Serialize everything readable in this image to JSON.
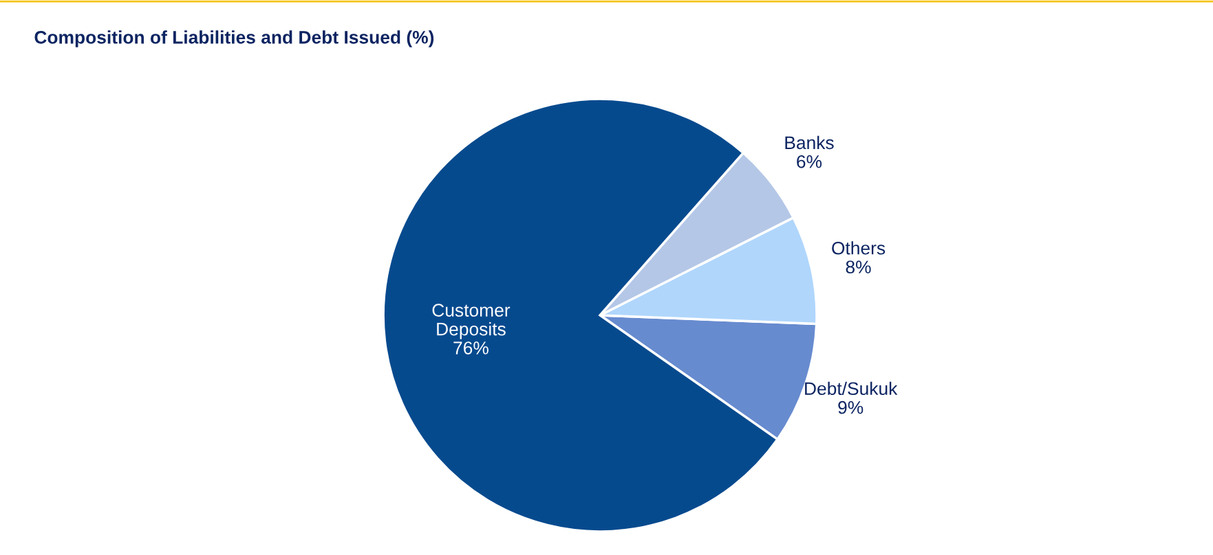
{
  "chart_data": {
    "type": "pie",
    "title": "Composition of Liabilities and Debt Issued (%)",
    "categories": [
      "Debt/Sukuk",
      "Others",
      "Banks",
      "Customer\nDeposits"
    ],
    "values": [
      9,
      8,
      6,
      76
    ],
    "value_labels": [
      "9%",
      "8%",
      "6%",
      "76%"
    ],
    "colors": [
      "#678bcf",
      "#b0d6fc",
      "#b4c7e7",
      "#064a8e"
    ],
    "legend": false
  }
}
